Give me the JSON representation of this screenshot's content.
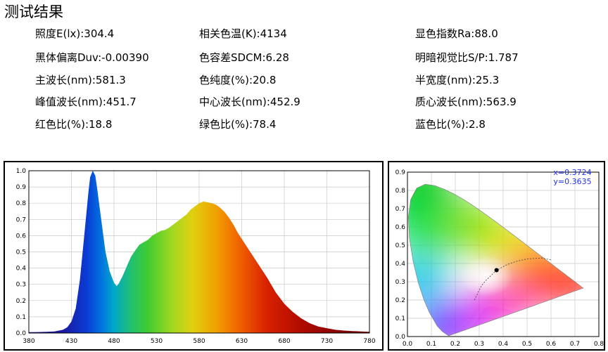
{
  "title": "测试结果",
  "metrics": [
    [
      "照度E(lx):304.4",
      "相关色温(K):4134",
      "显色指数Ra:88.0"
    ],
    [
      "黑体偏离Duv:-0.00390",
      "色容差SDCM:6.28",
      "明暗视觉比S/P:1.787"
    ],
    [
      "主波长(nm):581.3",
      "色纯度(%):20.8",
      "半宽度(nm):25.3"
    ],
    [
      "峰值波长(nm):451.7",
      "中心波长(nm):452.9",
      "质心波长(nm):563.9"
    ],
    [
      "红色比(%):18.8",
      "绿色比(%):78.4",
      "蓝色比(%):2.8"
    ]
  ],
  "chart_data": [
    {
      "type": "area",
      "x_ticks": [
        "380",
        "430",
        "480",
        "530",
        "580",
        "630",
        "680",
        "730",
        "780"
      ],
      "y_ticks": [
        "0.0",
        "0.1",
        "0.2",
        "0.3",
        "0.4",
        "0.5",
        "0.6",
        "0.7",
        "0.8",
        "0.9",
        "1.0"
      ],
      "xlim": [
        380,
        780
      ],
      "ylim": [
        0,
        1.0
      ],
      "x": [
        380,
        390,
        400,
        410,
        420,
        425,
        430,
        435,
        440,
        445,
        450,
        452,
        455,
        458,
        460,
        465,
        470,
        475,
        480,
        483,
        485,
        490,
        495,
        500,
        505,
        510,
        515,
        520,
        525,
        530,
        535,
        540,
        545,
        550,
        555,
        560,
        565,
        570,
        575,
        580,
        585,
        590,
        595,
        600,
        605,
        610,
        615,
        620,
        625,
        630,
        640,
        650,
        660,
        670,
        680,
        690,
        700,
        710,
        720,
        730,
        740,
        750,
        760,
        770,
        780
      ],
      "values": [
        0.005,
        0.006,
        0.008,
        0.01,
        0.02,
        0.035,
        0.07,
        0.15,
        0.33,
        0.6,
        0.87,
        0.96,
        1.0,
        0.97,
        0.9,
        0.7,
        0.5,
        0.38,
        0.31,
        0.29,
        0.3,
        0.35,
        0.41,
        0.47,
        0.51,
        0.545,
        0.56,
        0.575,
        0.6,
        0.615,
        0.63,
        0.635,
        0.65,
        0.67,
        0.69,
        0.71,
        0.73,
        0.76,
        0.78,
        0.8,
        0.81,
        0.805,
        0.8,
        0.79,
        0.77,
        0.745,
        0.71,
        0.67,
        0.62,
        0.58,
        0.5,
        0.42,
        0.34,
        0.25,
        0.18,
        0.13,
        0.09,
        0.06,
        0.04,
        0.03,
        0.02,
        0.015,
        0.012,
        0.01,
        0.008
      ],
      "grid": true
    },
    {
      "type": "scatter",
      "x_ticks": [
        "0.0",
        "0.1",
        "0.2",
        "0.3",
        "0.4",
        "0.5",
        "0.6",
        "0.7",
        "0.8"
      ],
      "y_ticks": [
        "0.0",
        "0.1",
        "0.2",
        "0.3",
        "0.4",
        "0.5",
        "0.6",
        "0.7",
        "0.8",
        "0.9"
      ],
      "xlim": [
        0,
        0.8
      ],
      "ylim": [
        0,
        0.9
      ],
      "point": {
        "x": 0.3724,
        "y": 0.3635
      },
      "labels": [
        "x=0.3724",
        "y=0.3635"
      ],
      "grid": true
    }
  ]
}
